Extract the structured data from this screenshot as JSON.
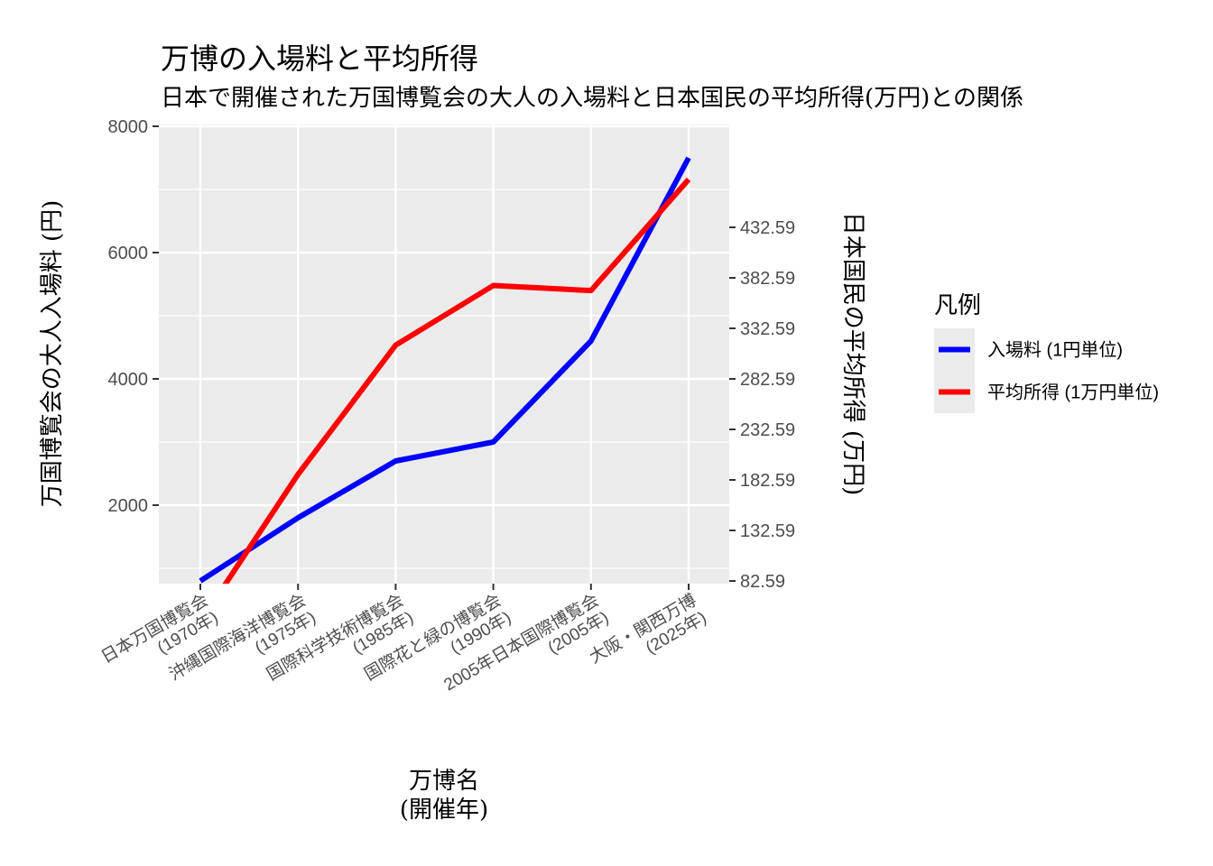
{
  "chart_data": {
    "type": "line",
    "title": "万博の入場料と平均所得",
    "subtitle": "日本で開催された万国博覧会の大人の入場料と日本国民の平均所得(万円)との関係",
    "xlabel": [
      "万博名",
      "(開催年)"
    ],
    "ylabel_left": "万国博覧会の大人入場料 (円)",
    "ylabel_right": "日本国民の平均所得 (万円)",
    "categories": [
      [
        "日本万国博覧会",
        "(1970年)"
      ],
      [
        "沖縄国際海洋博覧会",
        "(1975年)"
      ],
      [
        "国際科学技術博覧会",
        "(1985年)"
      ],
      [
        "国際花と緑の博覧会",
        "(1990年)"
      ],
      [
        "2005年日本国際博覧会",
        "(2005年)"
      ],
      [
        "大阪・関西万博",
        "(2025年)"
      ]
    ],
    "ylim_left": [
      800,
      8000
    ],
    "yticks_left": [
      "2000",
      "4000",
      "6000",
      "8000"
    ],
    "yticks_right": [
      "82.59",
      "132.59",
      "182.59",
      "232.59",
      "282.59",
      "332.59",
      "382.59",
      "432.59"
    ],
    "series": [
      {
        "name": "入場料 (1円単位)",
        "color": "#0000ff",
        "axis": "left",
        "values": [
          800,
          1800,
          2700,
          3000,
          4600,
          7500
        ]
      },
      {
        "name": "平均所得 (1万円単位)",
        "color": "#ff0000",
        "axis": "right",
        "values": [
          42,
          188,
          316,
          375,
          370,
          480
        ]
      }
    ],
    "right_axis_transform": "right = left / 16 + 32.59",
    "legend": {
      "title": "凡例",
      "position": "right"
    },
    "grid": true,
    "panel_background": "#ebebeb"
  }
}
